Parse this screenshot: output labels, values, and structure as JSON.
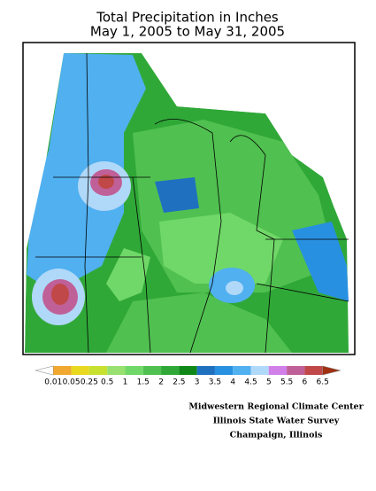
{
  "title": [
    "Total Precipitation in Inches",
    "May 1, 2005 to May 31, 2005"
  ],
  "legend": {
    "labels": [
      "0.01",
      "0.05",
      "0.25",
      "0.5",
      "1",
      "1.5",
      "2",
      "2.5",
      "3",
      "3.5",
      "4",
      "4.5",
      "5",
      "5.5",
      "6",
      "6.5"
    ],
    "colors": [
      "#ffffff",
      "#f0a830",
      "#e8d820",
      "#c8e030",
      "#98e070",
      "#70d868",
      "#50c050",
      "#30a838",
      "#108818",
      "#2070c0",
      "#2890e0",
      "#50b0f0",
      "#b0d8f8",
      "#d080e8",
      "#c06098",
      "#c04848",
      "#a03010"
    ]
  },
  "credits": [
    "Midwestern Regional Climate Center",
    "Illinois State Water Survey",
    "Champaign, Illinois"
  ]
}
